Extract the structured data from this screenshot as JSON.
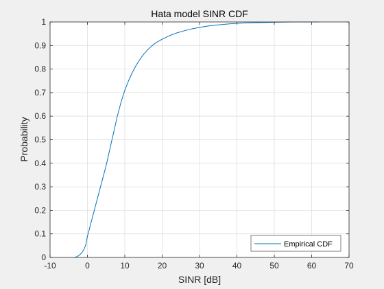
{
  "chart_data": {
    "type": "line",
    "title": "Hata model SINR CDF",
    "xlabel": "SINR  [dB]",
    "ylabel": "Probability",
    "xlim": [
      -10,
      70
    ],
    "ylim": [
      0,
      1
    ],
    "xticks": [
      -10,
      0,
      10,
      20,
      30,
      40,
      50,
      60,
      70
    ],
    "xtick_labels": [
      "-10",
      "0",
      "10",
      "20",
      "30",
      "40",
      "50",
      "60",
      "70"
    ],
    "yticks": [
      0,
      0.1,
      0.2,
      0.3,
      0.4,
      0.5,
      0.6,
      0.7,
      0.8,
      0.9,
      1
    ],
    "ytick_labels": [
      "0",
      "0.1",
      "0.2",
      "0.3",
      "0.4",
      "0.5",
      "0.6",
      "0.7",
      "0.8",
      "0.9",
      "1"
    ],
    "grid": true,
    "legend": {
      "position": "bottom-right",
      "entries": [
        "Empirical CDF"
      ]
    },
    "series": [
      {
        "name": "Empirical CDF",
        "color": "#0072bd",
        "x": [
          -3.5,
          -3,
          -2.5,
          -2,
          -1.5,
          -1,
          -0.5,
          0,
          1,
          2,
          3,
          4,
          5,
          6,
          7,
          8,
          9,
          10,
          11,
          12,
          13,
          14,
          15,
          16,
          17,
          18,
          19,
          20,
          22,
          24,
          26,
          28,
          30,
          32,
          34,
          36,
          38,
          40,
          42,
          45,
          48,
          50,
          55,
          60,
          62
        ],
        "y": [
          0,
          0.002,
          0.006,
          0.012,
          0.02,
          0.032,
          0.05,
          0.09,
          0.15,
          0.21,
          0.27,
          0.33,
          0.39,
          0.46,
          0.53,
          0.6,
          0.66,
          0.71,
          0.75,
          0.785,
          0.815,
          0.84,
          0.862,
          0.88,
          0.895,
          0.908,
          0.918,
          0.927,
          0.942,
          0.954,
          0.963,
          0.971,
          0.977,
          0.982,
          0.986,
          0.989,
          0.992,
          0.994,
          0.996,
          0.997,
          0.998,
          0.999,
          1.0,
          1.0,
          1.0
        ]
      }
    ]
  }
}
